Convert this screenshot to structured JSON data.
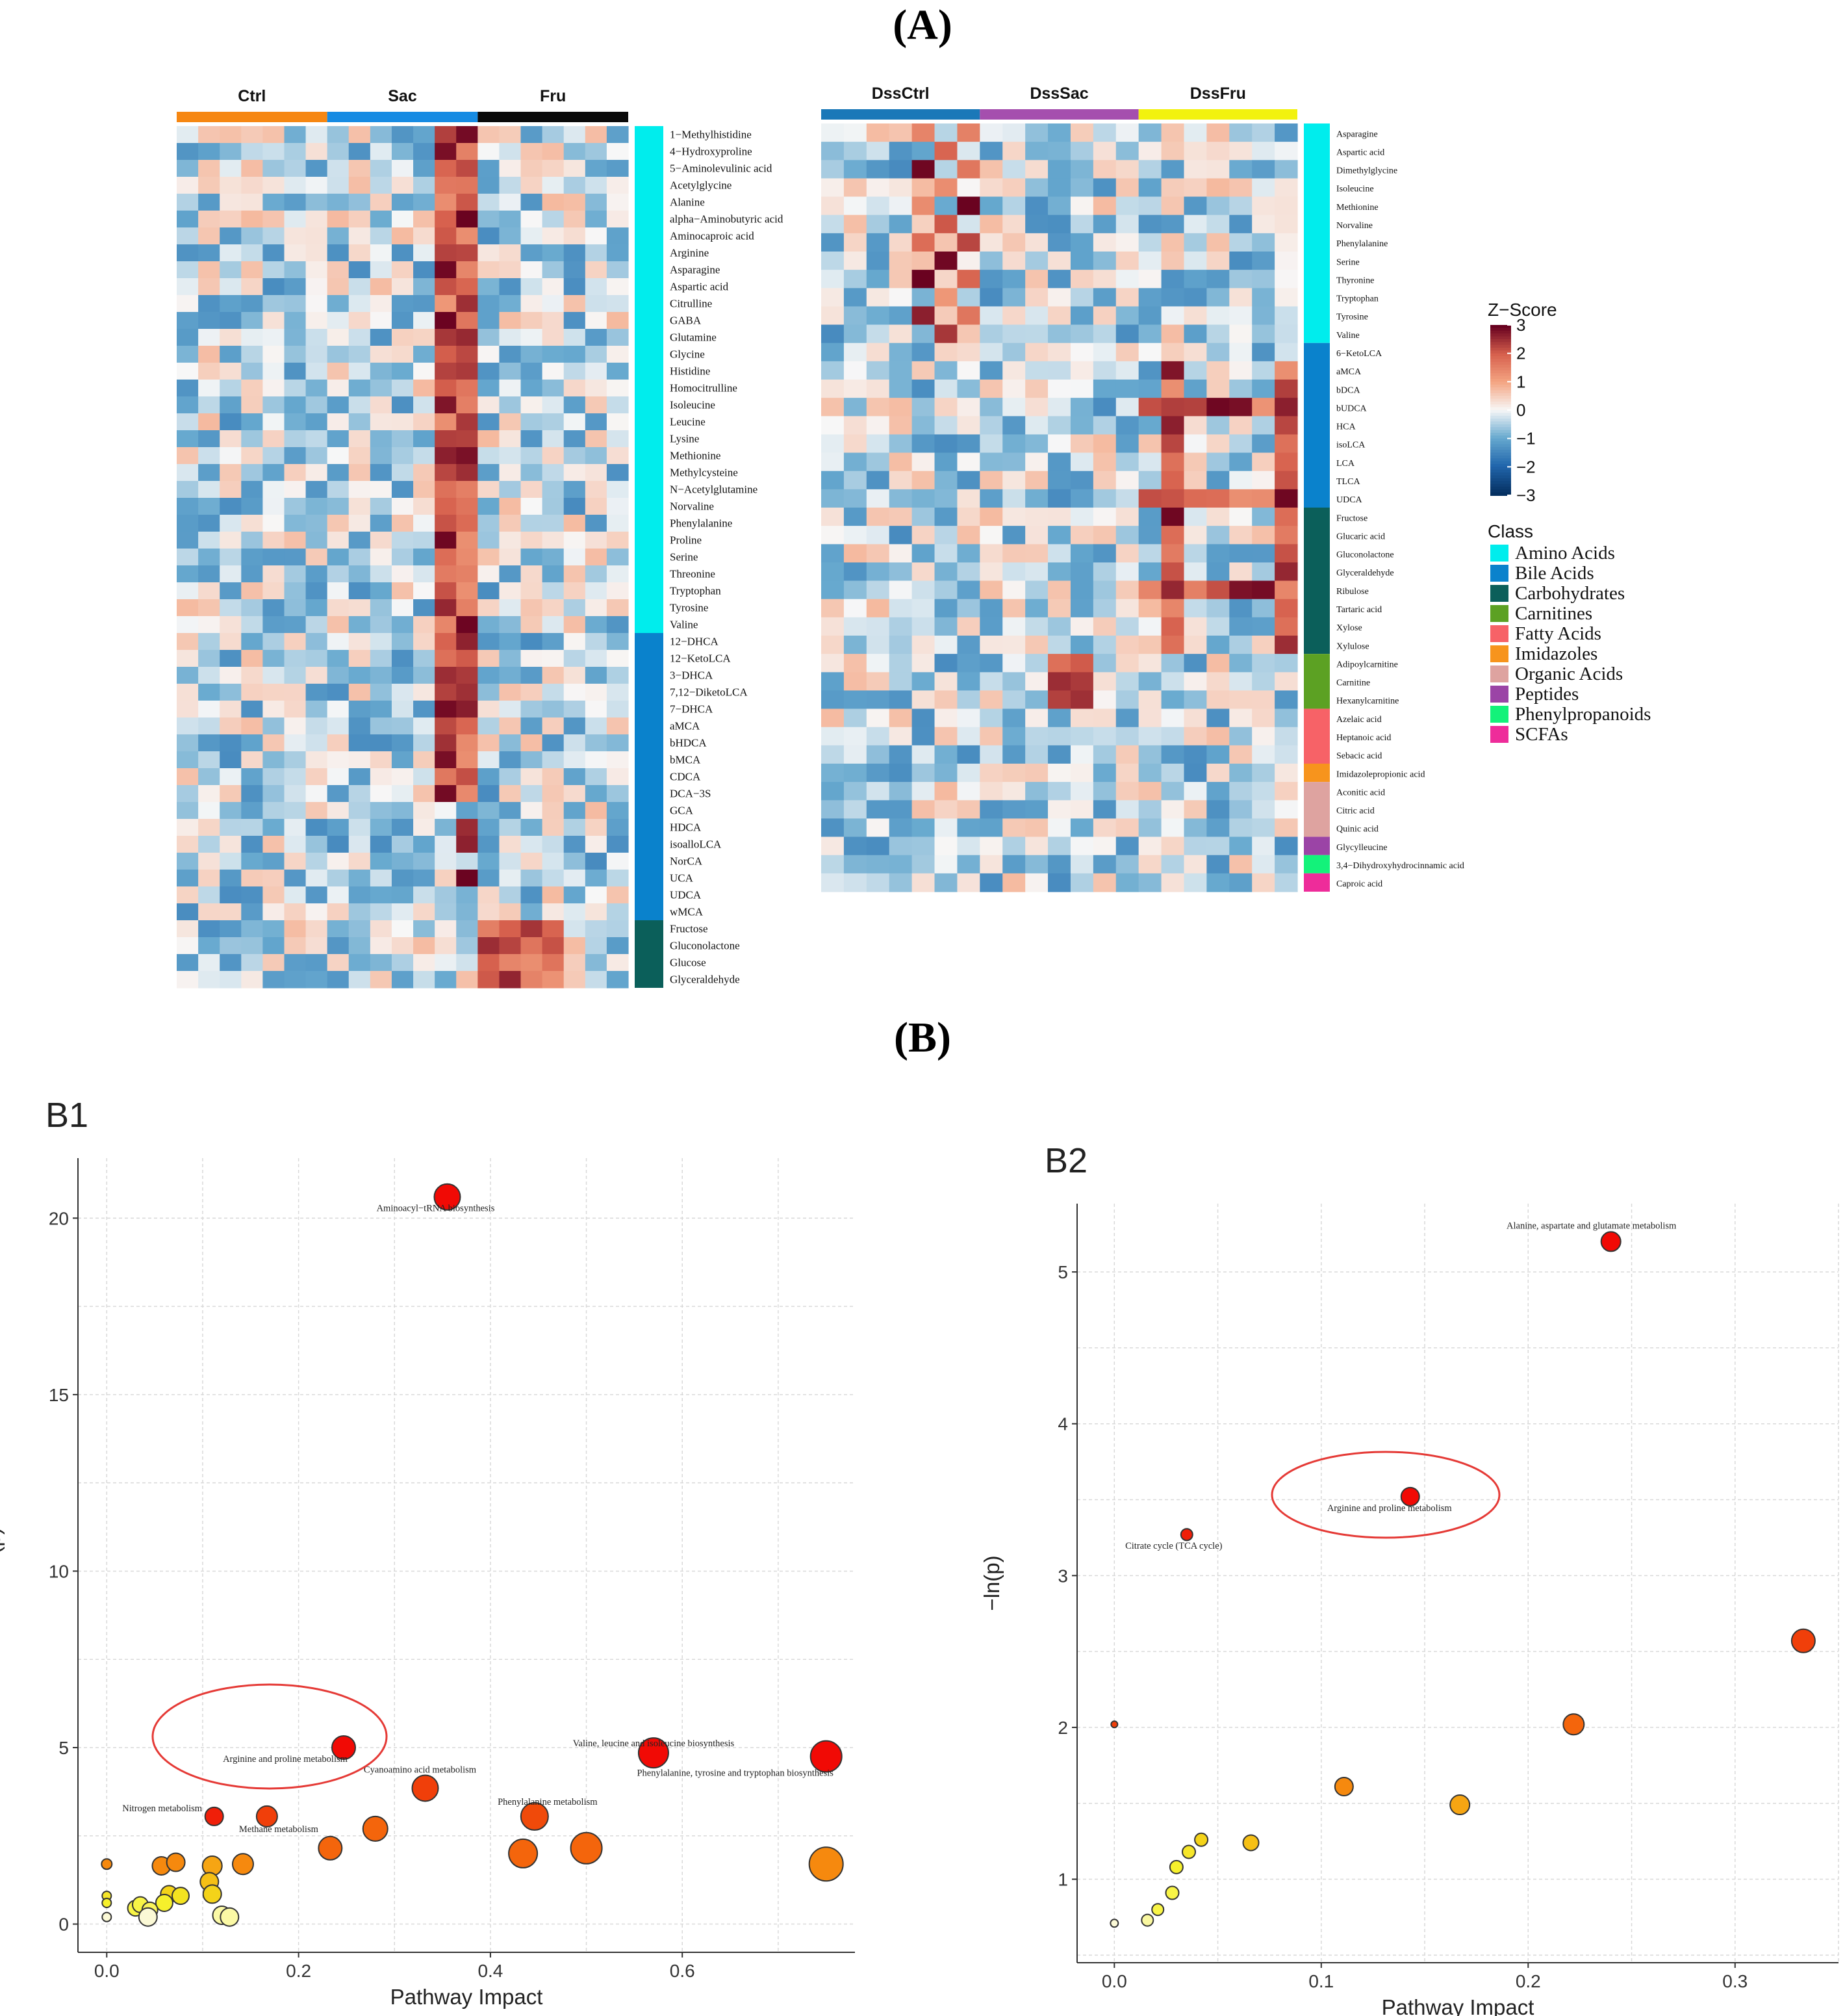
{
  "panel_labels": {
    "a": "(A)",
    "b": "(B)"
  },
  "chart_data": [
    {
      "type": "heatmap",
      "id": "A-left",
      "groups": [
        {
          "name": "Ctrl",
          "color": "#f68712"
        },
        {
          "name": "Sac",
          "color": "#168be3"
        },
        {
          "name": "Fru",
          "color": "#0a0a0a"
        }
      ],
      "columns_per_group": 7,
      "rows": [
        "1−Methylhistidine",
        "4−Hydroxyproline",
        "5−Aminolevulinic acid",
        "Acetylglycine",
        "Alanine",
        "alpha−Aminobutyric acid",
        "Aminocaproic acid",
        "Arginine",
        "Asparagine",
        "Aspartic acid",
        "Citrulline",
        "GABA",
        "Glutamine",
        "Glycine",
        "Histidine",
        "Homocitrulline",
        "Isoleucine",
        "Leucine",
        "Lysine",
        "Methionine",
        "Methylcysteine",
        "N−Acetylglutamine",
        "Norvaline",
        "Phenylalanine",
        "Proline",
        "Serine",
        "Threonine",
        "Tryptophan",
        "Tyrosine",
        "Valine",
        "12−DHCA",
        "12−KetoLCA",
        "3−DHCA",
        "7,12−DiketoLCA",
        "7−DHCA",
        "aMCA",
        "bHDCA",
        "bMCA",
        "CDCA",
        "DCA−3S",
        "GCA",
        "HDCA",
        "isoalloLCA",
        "NorCA",
        "UCA",
        "UDCA",
        "wMCA",
        "Fructose",
        "Gluconolactone",
        "Glucose",
        "Glyceraldehyde"
      ],
      "row_classes": {
        "Amino Acids": 30,
        "Bile Acids": 17,
        "Carbohydrates": 4
      },
      "scale": [
        -3,
        3
      ]
    },
    {
      "type": "heatmap",
      "id": "A-right",
      "groups": [
        {
          "name": "DssCtrl",
          "color": "#1a78b8"
        },
        {
          "name": "DssSac",
          "color": "#a54fae"
        },
        {
          "name": "DssFru",
          "color": "#f2f20e"
        }
      ],
      "columns_per_group": 7,
      "rows": [
        "Asparagine",
        "Aspartic acid",
        "Dimethylglycine",
        "Isoleucine",
        "Methionine",
        "Norvaline",
        "Phenylalanine",
        "Serine",
        "Thyronine",
        "Tryptophan",
        "Tyrosine",
        "Valine",
        "6−KetoLCA",
        "aMCA",
        "bDCA",
        "bUDCA",
        "HCA",
        "isoLCA",
        "LCA",
        "TLCA",
        "UDCA",
        "Fructose",
        "Glucaric acid",
        "Gluconolactone",
        "Glyceraldehyde",
        "Ribulose",
        "Tartaric acid",
        "Xylose",
        "Xylulose",
        "Adipoylcarnitine",
        "Carnitine",
        "Hexanylcarnitine",
        "Azelaic acid",
        "Heptanoic acid",
        "Sebacic acid",
        "Imidazolepropionic acid",
        "Aconitic acid",
        "Citric acid",
        "Quinic acid",
        "Glycylleucine",
        "3,4−Dihydroxyhydrocinnamic acid",
        "Caproic acid"
      ],
      "row_classes": {
        "Amino Acids": 12,
        "Bile Acids": 9,
        "Carbohydrates": 8,
        "Carnitines": 3,
        "Fatty Acids": 3,
        "Imidazoles": 1,
        "Organic Acids": 3,
        "Peptides": 1,
        "Phenylpropanoids": 1,
        "SCFAs": 1
      },
      "scale": [
        -3,
        3
      ]
    },
    {
      "type": "scatter",
      "id": "B1",
      "title": "B1",
      "xlabel": "Pathway Impact",
      "ylabel": "−ln(p)",
      "xlim": [
        -0.03,
        0.78
      ],
      "ylim": [
        -0.8,
        21.7
      ],
      "xticks": [
        0.0,
        0.2,
        0.4,
        0.6
      ],
      "xtick_labels": [
        "0.0",
        "0.2",
        "0.4",
        "0.6"
      ],
      "yticks": [
        0,
        5,
        10,
        15,
        20
      ],
      "points": [
        {
          "x": 0.355,
          "y": 20.6,
          "r": 20,
          "c": "#f10a05",
          "label": "Aminoacyl−tRNA biosynthesis"
        },
        {
          "x": 0.247,
          "y": 5.0,
          "r": 18,
          "c": "#f10a05",
          "label": "Arginine and proline metabolism"
        },
        {
          "x": 0.57,
          "y": 4.85,
          "r": 23,
          "c": "#f10a05",
          "label": "Valine, leucine and isoleucine biosynthesis"
        },
        {
          "x": 0.75,
          "y": 4.75,
          "r": 24,
          "c": "#f10a05",
          "label": "Phenylalanine, tyrosine and tryptophan biosynthesis"
        },
        {
          "x": 0.332,
          "y": 3.85,
          "r": 20,
          "c": "#f03f0a",
          "label": "Cyanoamino acid metabolism"
        },
        {
          "x": 0.112,
          "y": 3.05,
          "r": 14,
          "c": "#f01f09",
          "label": "Nitrogen metabolism"
        },
        {
          "x": 0.167,
          "y": 3.05,
          "r": 16,
          "c": "#f03f0a",
          "label": "Methane metabolism"
        },
        {
          "x": 0.446,
          "y": 3.05,
          "r": 21,
          "c": "#f04a0a",
          "label": "Phenylalanine metabolism"
        },
        {
          "x": 0.28,
          "y": 2.7,
          "r": 19,
          "c": "#f4650c",
          "label": ""
        },
        {
          "x": 0.233,
          "y": 2.15,
          "r": 18,
          "c": "#f4650c",
          "label": ""
        },
        {
          "x": 0.434,
          "y": 2.0,
          "r": 22,
          "c": "#f4650c",
          "label": ""
        },
        {
          "x": 0.5,
          "y": 2.15,
          "r": 24,
          "c": "#f4650c",
          "label": ""
        },
        {
          "x": 0.75,
          "y": 1.7,
          "r": 26,
          "c": "#f6890e",
          "label": ""
        },
        {
          "x": 0.0,
          "y": 1.7,
          "r": 8,
          "c": "#f6890e",
          "label": ""
        },
        {
          "x": 0.057,
          "y": 1.65,
          "r": 14,
          "c": "#f6890e",
          "label": ""
        },
        {
          "x": 0.072,
          "y": 1.75,
          "r": 14,
          "c": "#f6890e",
          "label": ""
        },
        {
          "x": 0.11,
          "y": 1.65,
          "r": 15,
          "c": "#f6a513",
          "label": ""
        },
        {
          "x": 0.142,
          "y": 1.7,
          "r": 16,
          "c": "#f6890e",
          "label": ""
        },
        {
          "x": 0.107,
          "y": 1.2,
          "r": 14,
          "c": "#f6c015",
          "label": ""
        },
        {
          "x": 0.11,
          "y": 0.85,
          "r": 14,
          "c": "#f4d319",
          "label": ""
        },
        {
          "x": 0.065,
          "y": 0.85,
          "r": 13,
          "c": "#f4d319",
          "label": ""
        },
        {
          "x": 0.077,
          "y": 0.8,
          "r": 13,
          "c": "#f4e320",
          "label": ""
        },
        {
          "x": 0.06,
          "y": 0.6,
          "r": 13,
          "c": "#f6f02c",
          "label": ""
        },
        {
          "x": 0.0,
          "y": 0.8,
          "r": 7,
          "c": "#f6e62a",
          "label": ""
        },
        {
          "x": 0.0,
          "y": 0.6,
          "r": 7,
          "c": "#f6f02c",
          "label": ""
        },
        {
          "x": 0.03,
          "y": 0.45,
          "r": 12,
          "c": "#f8f446",
          "label": ""
        },
        {
          "x": 0.035,
          "y": 0.55,
          "r": 12,
          "c": "#f8f446",
          "label": ""
        },
        {
          "x": 0.045,
          "y": 0.4,
          "r": 12,
          "c": "#f9f35a",
          "label": ""
        },
        {
          "x": 0.043,
          "y": 0.2,
          "r": 14,
          "c": "#fbf9d6",
          "label": ""
        },
        {
          "x": 0.0,
          "y": 0.2,
          "r": 7,
          "c": "#fbf9d6",
          "label": ""
        },
        {
          "x": 0.12,
          "y": 0.25,
          "r": 14,
          "c": "#fbf9a5",
          "label": ""
        },
        {
          "x": 0.128,
          "y": 0.2,
          "r": 14,
          "c": "#fbf9a5",
          "label": ""
        }
      ]
    },
    {
      "type": "scatter",
      "id": "B2",
      "title": "B2",
      "xlabel": "Pathway Impact",
      "ylabel": "−ln(p)",
      "xlim": [
        -0.018,
        0.35
      ],
      "ylim": [
        0.45,
        5.45
      ],
      "xticks": [
        0.0,
        0.1,
        0.2,
        0.3
      ],
      "xtick_labels": [
        "0.0",
        "0.1",
        "0.2",
        "0.3"
      ],
      "yticks": [
        1,
        2,
        3,
        4,
        5
      ],
      "points": [
        {
          "x": 0.24,
          "y": 5.2,
          "r": 15,
          "c": "#f10a05",
          "label": "Alanine, aspartate and glutamate metabolism"
        },
        {
          "x": 0.143,
          "y": 3.52,
          "r": 14,
          "c": "#f10a05",
          "label": "Arginine and proline metabolism"
        },
        {
          "x": 0.035,
          "y": 3.27,
          "r": 9,
          "c": "#f01f09",
          "label": "Citrate cycle (TCA cycle)"
        },
        {
          "x": 0.333,
          "y": 2.57,
          "r": 18,
          "c": "#f03f0a",
          "label": ""
        },
        {
          "x": 0.222,
          "y": 2.02,
          "r": 16,
          "c": "#f4650c",
          "label": ""
        },
        {
          "x": 0.0,
          "y": 2.02,
          "r": 5,
          "c": "#f03f0a",
          "label": ""
        },
        {
          "x": 0.111,
          "y": 1.61,
          "r": 14,
          "c": "#f6890e",
          "label": ""
        },
        {
          "x": 0.167,
          "y": 1.49,
          "r": 15,
          "c": "#f6a513",
          "label": ""
        },
        {
          "x": 0.066,
          "y": 1.24,
          "r": 12,
          "c": "#f6c015",
          "label": ""
        },
        {
          "x": 0.042,
          "y": 1.26,
          "r": 10,
          "c": "#f4d319",
          "label": ""
        },
        {
          "x": 0.036,
          "y": 1.18,
          "r": 10,
          "c": "#f6e62a",
          "label": ""
        },
        {
          "x": 0.03,
          "y": 1.08,
          "r": 10,
          "c": "#f6f02c",
          "label": ""
        },
        {
          "x": 0.028,
          "y": 0.91,
          "r": 10,
          "c": "#f8f446",
          "label": ""
        },
        {
          "x": 0.021,
          "y": 0.8,
          "r": 9,
          "c": "#f8f446",
          "label": ""
        },
        {
          "x": 0.016,
          "y": 0.73,
          "r": 9,
          "c": "#f9f7a0",
          "label": ""
        },
        {
          "x": 0.0,
          "y": 0.71,
          "r": 6,
          "c": "#fbf9d6",
          "label": ""
        }
      ]
    }
  ],
  "legend": {
    "zscore_title": "Z−Score",
    "zscore_ticks": [
      "3",
      "2",
      "1",
      "0",
      "−1",
      "−2",
      "−3"
    ],
    "class_title": "Class",
    "classes": [
      {
        "name": "Amino Acids",
        "color": "#00eded"
      },
      {
        "name": "Bile Acids",
        "color": "#0a82cc"
      },
      {
        "name": "Carbohydrates",
        "color": "#0b5f5a"
      },
      {
        "name": "Carnitines",
        "color": "#5ca123"
      },
      {
        "name": "Fatty Acids",
        "color": "#f76267"
      },
      {
        "name": "Imidazoles",
        "color": "#f7941d"
      },
      {
        "name": "Organic Acids",
        "color": "#dea3a0"
      },
      {
        "name": "Peptides",
        "color": "#9b44a6"
      },
      {
        "name": "Phenylpropanoids",
        "color": "#13f27a"
      },
      {
        "name": "SCFAs",
        "color": "#ee2c9a"
      }
    ]
  },
  "highlight_color": "#e53a36"
}
